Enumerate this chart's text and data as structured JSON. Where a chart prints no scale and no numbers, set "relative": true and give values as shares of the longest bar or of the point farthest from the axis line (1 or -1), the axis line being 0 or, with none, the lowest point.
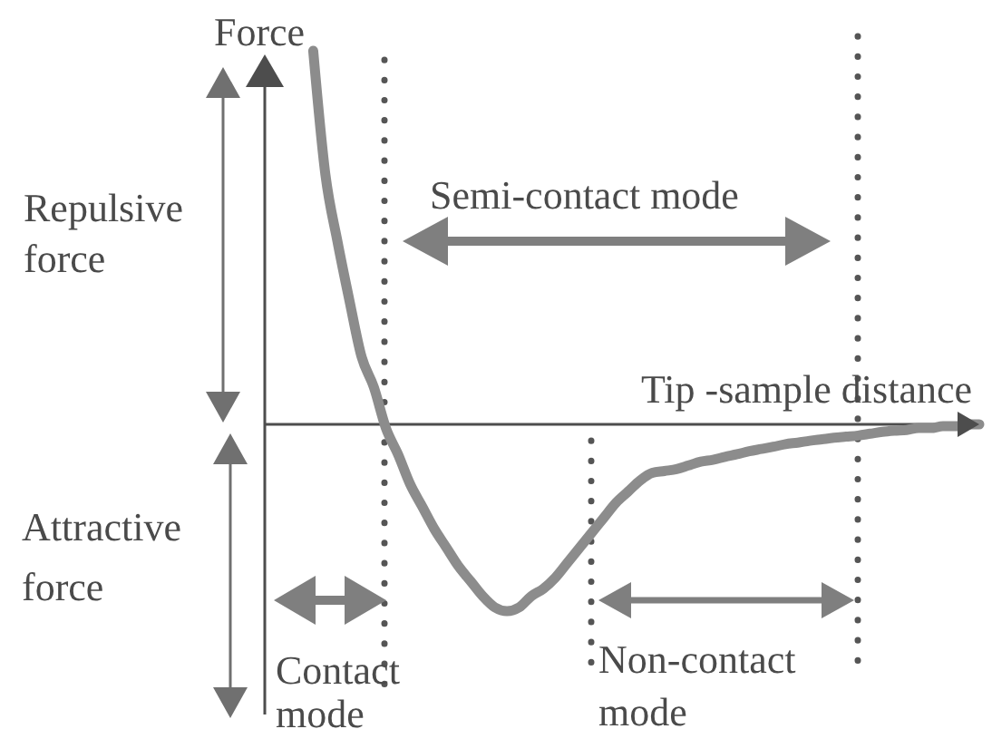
{
  "chart_data": {
    "type": "line",
    "relative": true,
    "xlabel": "Tip -sample distance",
    "ylabel": "Force",
    "categories": [
      null,
      null,
      null,
      null,
      null,
      null,
      null,
      null,
      null,
      null,
      null,
      null,
      null,
      null,
      null,
      null,
      null,
      null,
      null,
      null,
      null,
      null,
      null,
      null,
      null,
      null,
      null,
      null,
      null,
      null,
      null,
      null,
      null,
      null,
      null,
      null,
      null,
      null,
      null,
      null,
      null,
      null,
      null,
      null,
      null,
      null,
      null,
      null,
      null,
      null,
      null,
      null,
      null,
      null,
      null,
      null,
      null,
      null,
      null,
      null
    ],
    "series": [
      {
        "color": "#8c8c8c",
        "values": [
          null,
          null,
          null,
          null,
          1.0,
          0.67,
          0.49,
          0.33,
          0.18,
          0.1,
          -0.01,
          -0.08,
          -0.16,
          -0.22,
          -0.28,
          -0.33,
          -0.38,
          -0.42,
          -0.46,
          -0.49,
          -0.5,
          -0.49,
          -0.46,
          -0.44,
          -0.41,
          -0.37,
          -0.33,
          -0.29,
          -0.25,
          -0.21,
          -0.18,
          -0.15,
          -0.13,
          -0.125,
          -0.12,
          -0.11,
          -0.1,
          -0.095,
          -0.087,
          -0.08,
          -0.072,
          -0.066,
          -0.06,
          -0.053,
          -0.049,
          -0.044,
          -0.04,
          -0.036,
          -0.033,
          -0.03,
          -0.025,
          -0.02,
          -0.017,
          -0.015,
          -0.01,
          -0.01,
          -0.005,
          -0.005,
          0,
          0
        ]
      }
    ],
    "annotations": [
      "Repulsive\nforce",
      "Attractive\nforce",
      "Contact\nmode",
      "Semi-contact mode",
      "Non-contact\nmode"
    ]
  }
}
